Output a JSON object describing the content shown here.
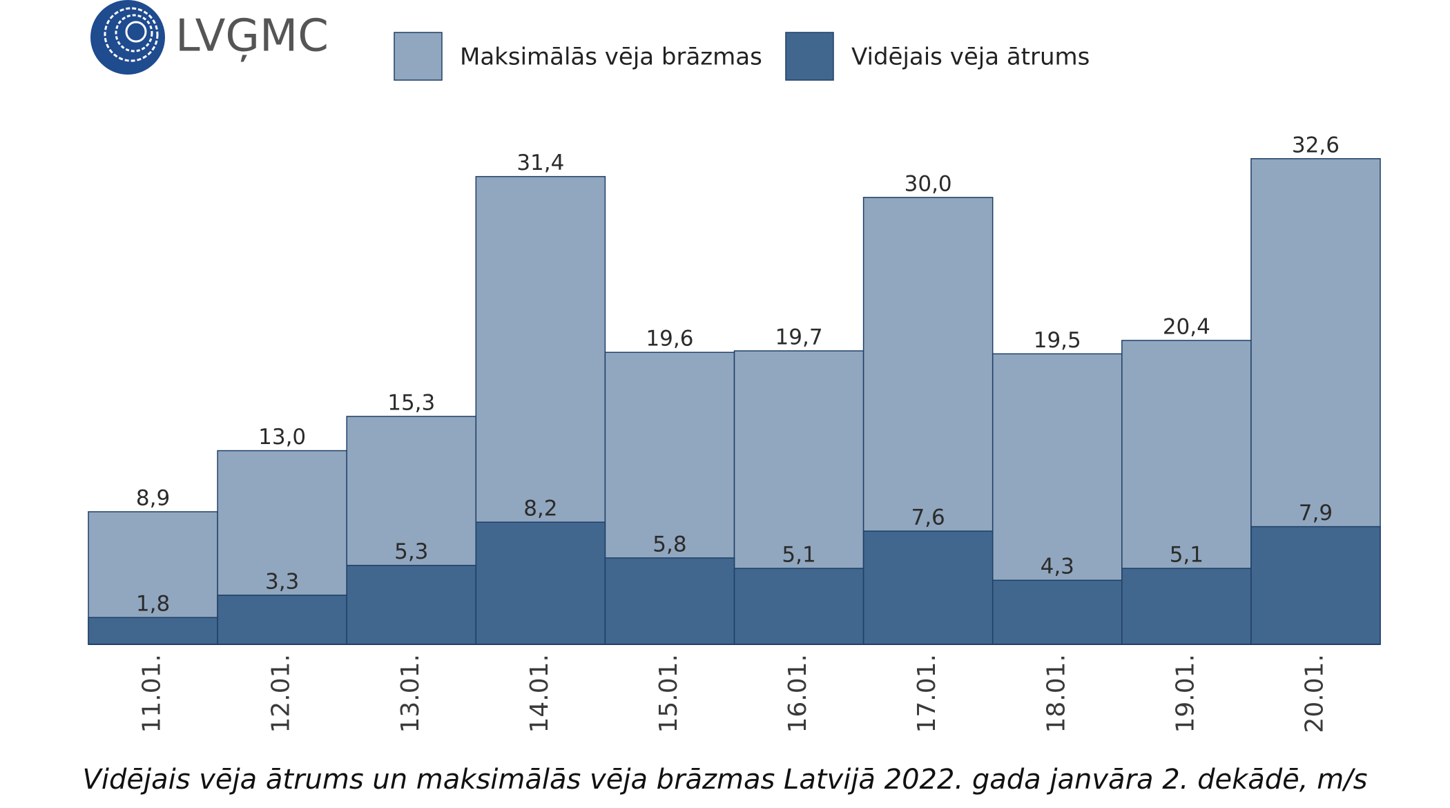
{
  "logo": "LVĢMC",
  "chart_data": {
    "type": "bar",
    "title": "Vidējais vēja ātrums un maksimālās vēja brāzmas Latvijā 2022. gada janvāra 2. dekādē, m/s",
    "categories": [
      "11.01.",
      "12.01.",
      "13.01.",
      "14.01.",
      "15.01.",
      "16.01.",
      "17.01.",
      "18.01.",
      "19.01.",
      "20.01."
    ],
    "series": [
      {
        "name": "Maksimālās vēja brāzmas",
        "color": "#91a7bf",
        "values": [
          8.9,
          13.0,
          15.3,
          31.4,
          19.6,
          19.7,
          30.0,
          19.5,
          20.4,
          32.6
        ],
        "value_labels": [
          "8,9",
          "13,0",
          "15,3",
          "31,4",
          "19,6",
          "19,7",
          "30,0",
          "19,5",
          "20,4",
          "32,6"
        ]
      },
      {
        "name": "Vidējais vēja ātrums",
        "color": "#41678f",
        "values": [
          1.8,
          3.3,
          5.3,
          8.2,
          5.8,
          5.1,
          7.6,
          4.3,
          5.1,
          7.9
        ],
        "value_labels": [
          "1,8",
          "3,3",
          "5,3",
          "8,2",
          "5,8",
          "5,1",
          "7,6",
          "4,3",
          "5,1",
          "7,9"
        ]
      }
    ],
    "ylim": [
      0,
      35
    ]
  }
}
